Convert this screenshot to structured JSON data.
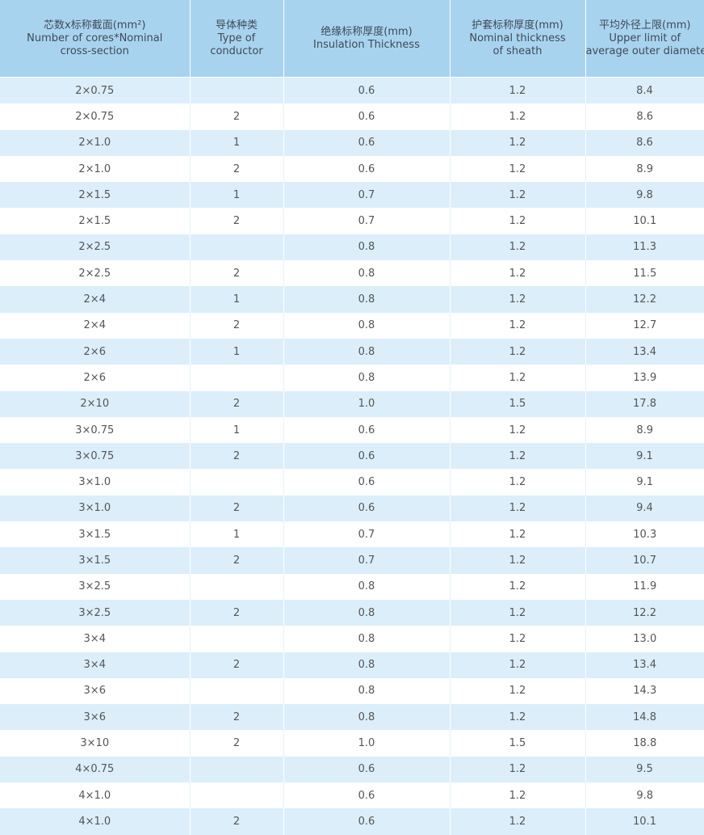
{
  "table": {
    "header": [
      [
        "芯数x标称截面(mm²)",
        "Number of cores*Nominal",
        "cross-section"
      ],
      [
        "导体种类",
        "Type of",
        "conductor"
      ],
      [
        "绝缘标称厚度(mm)",
        "Insulation Thickness"
      ],
      [
        "护套标称厚度(mm)",
        "Nominal thickness",
        "of sheath"
      ],
      [
        "平均外径上限(mm)",
        "Upper limit of",
        "average outer diameter"
      ]
    ],
    "rows": [
      [
        "2×0.75",
        null,
        "0.6",
        "1.2",
        "8.4"
      ],
      [
        "2×0.75",
        "2",
        "0.6",
        "1.2",
        "8.6"
      ],
      [
        "2×1.0",
        "1",
        "0.6",
        "1.2",
        "8.6"
      ],
      [
        "2×1.0",
        "2",
        "0.6",
        "1.2",
        "8.9"
      ],
      [
        "2×1.5",
        "1",
        "0.7",
        "1.2",
        "9.8"
      ],
      [
        "2×1.5",
        "2",
        "0.7",
        "1.2",
        "10.1"
      ],
      [
        "2×2.5",
        null,
        "0.8",
        "1.2",
        "11.3"
      ],
      [
        "2×2.5",
        "2",
        "0.8",
        "1.2",
        "11.5"
      ],
      [
        "2×4",
        "1",
        "0.8",
        "1.2",
        "12.2"
      ],
      [
        "2×4",
        "2",
        "0.8",
        "1.2",
        "12.7"
      ],
      [
        "2×6",
        "1",
        "0.8",
        "1.2",
        "13.4"
      ],
      [
        "2×6",
        null,
        "0.8",
        "1.2",
        "13.9"
      ],
      [
        "2×10",
        "2",
        "1.0",
        "1.5",
        "17.8"
      ],
      [
        "3×0.75",
        "1",
        "0.6",
        "1.2",
        "8.9"
      ],
      [
        "3×0.75",
        "2",
        "0.6",
        "1.2",
        "9.1"
      ],
      [
        "3×1.0",
        null,
        "0.6",
        "1.2",
        "9.1"
      ],
      [
        "3×1.0",
        "2",
        "0.6",
        "1.2",
        "9.4"
      ],
      [
        "3×1.5",
        "1",
        "0.7",
        "1.2",
        "10.3"
      ],
      [
        "3×1.5",
        "2",
        "0.7",
        "1.2",
        "10.7"
      ],
      [
        "3×2.5",
        null,
        "0.8",
        "1.2",
        "11.9"
      ],
      [
        "3×2.5",
        "2",
        "0.8",
        "1.2",
        "12.2"
      ],
      [
        "3×4",
        null,
        "0.8",
        "1.2",
        "13.0"
      ],
      [
        "3×4",
        "2",
        "0.8",
        "1.2",
        "13.4"
      ],
      [
        "3×6",
        null,
        "0.8",
        "1.2",
        "14.3"
      ],
      [
        "3×6",
        "2",
        "0.8",
        "1.2",
        "14.8"
      ],
      [
        "3×10",
        "2",
        "1.0",
        "1.5",
        "18.8"
      ],
      [
        "4×0.75",
        null,
        "0.6",
        "1.2",
        "9.5"
      ],
      [
        "4×1.0",
        null,
        "0.6",
        "1.2",
        "9.8"
      ],
      [
        "4×1.0",
        "2",
        "0.6",
        "1.2",
        "10.1"
      ]
    ]
  }
}
